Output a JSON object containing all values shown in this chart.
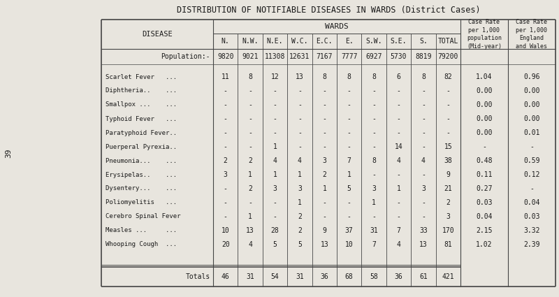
{
  "title": "DISTRIBUTION OF NOTIFIABLE DISEASES IN WARDS (District Cases)",
  "ward_header": "WARDS",
  "col_names": [
    "N.",
    "N.W.",
    "N.E.",
    "W.C.",
    "E.C.",
    "E.",
    "S.W.",
    "S.E.",
    "S.",
    "TOTAL"
  ],
  "cr_header1": "Case Rate\nper 1,000\npopulation\n(Mid-year)",
  "cr_header2": "Case Rate\nper 1,000\nEngland\nand Wales",
  "disease_label": "DISEASE",
  "population_label": "Population:-",
  "population_vals": [
    "9820",
    "9021",
    "11308",
    "12631",
    "7167",
    "7777",
    "6927",
    "5730",
    "8819",
    "79200"
  ],
  "diseases": [
    [
      "Scarlet Fever   ...",
      "11",
      "8",
      "12",
      "13",
      "8",
      "8",
      "8",
      "6",
      "8",
      "82",
      "1.04",
      "0.96"
    ],
    [
      "Diphtheria..    ...",
      "-",
      "-",
      "-",
      "-",
      "-",
      "-",
      "-",
      "-",
      "-",
      "-",
      "0.00",
      "0.00"
    ],
    [
      "Smallpox ...    ...",
      "-",
      "-",
      "-",
      "-",
      "-",
      "-",
      "-",
      "-",
      "-",
      "-",
      "0.00",
      "0.00"
    ],
    [
      "Typhoid Fever   ...",
      "-",
      "-",
      "-",
      "-",
      "-",
      "-",
      "-",
      "-",
      "-",
      "-",
      "0.00",
      "0.00"
    ],
    [
      "Paratyphoid Fever..",
      "-",
      "-",
      "-",
      "-",
      "-",
      "-",
      "-",
      "-",
      "-",
      "-",
      "0.00",
      "0.01"
    ],
    [
      "Puerperal Pyrexia..",
      "-",
      "-",
      "1",
      "-",
      "-",
      "-",
      "-",
      "14",
      "-",
      "15",
      "-",
      "-"
    ],
    [
      "Pneumonia...    ...",
      "2",
      "2",
      "4",
      "4",
      "3",
      "7",
      "8",
      "4",
      "4",
      "38",
      "0.48",
      "0.59"
    ],
    [
      "Erysipelas..    ...",
      "3",
      "1",
      "1",
      "1",
      "2",
      "1",
      "-",
      "-",
      "-",
      "9",
      "0.11",
      "0.12"
    ],
    [
      "Dysentery...    ...",
      "-",
      "2",
      "3",
      "3",
      "1",
      "5",
      "3",
      "1",
      "3",
      "21",
      "0.27",
      "-"
    ],
    [
      "Poliomyelitis   ...",
      "-",
      "-",
      "-",
      "1",
      "-",
      "-",
      "1",
      "-",
      "-",
      "2",
      "0.03",
      "0.04"
    ],
    [
      "Cerebro Spinal Fever",
      "-",
      "1",
      "-",
      "2",
      "-",
      "-",
      "-",
      "-",
      "-",
      "3",
      "0.04",
      "0.03"
    ],
    [
      "Measles ...     ...",
      "10",
      "13",
      "28",
      "2",
      "9",
      "37",
      "31",
      "7",
      "33",
      "170",
      "2.15",
      "3.32"
    ],
    [
      "Whooping Cough  ...",
      "20",
      "4",
      "5",
      "5",
      "13",
      "10",
      "7",
      "4",
      "13",
      "81",
      "1.02",
      "2.39"
    ]
  ],
  "totals_label": "Totals",
  "totals_vals": [
    "46",
    "31",
    "54",
    "31",
    "36",
    "68",
    "58",
    "36",
    "61",
    "421"
  ],
  "bg_color": "#e8e5de",
  "text_color": "#1a1a1a",
  "line_color": "#444444",
  "font_size": 7.0,
  "title_font_size": 8.5,
  "margin_label": "39"
}
